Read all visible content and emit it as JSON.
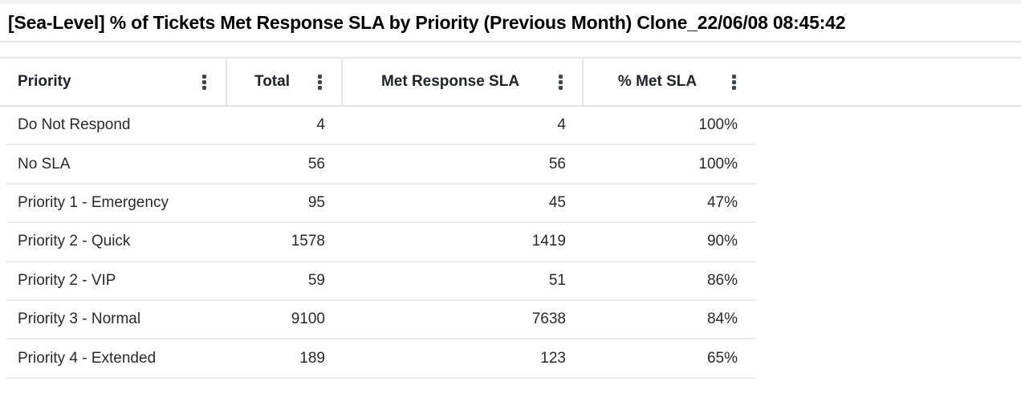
{
  "panel": {
    "title": "[Sea-Level] % of Tickets Met Response SLA by Priority (Previous Month) Clone_22/06/08 08:45:42"
  },
  "table": {
    "columns": [
      {
        "label": "Priority",
        "menu_icon": "kebab-vertical-icon",
        "align": "left"
      },
      {
        "label": "Total",
        "menu_icon": "kebab-vertical-icon",
        "align": "right"
      },
      {
        "label": "Met Response SLA",
        "menu_icon": "kebab-vertical-icon",
        "align": "right"
      },
      {
        "label": "% Met SLA",
        "menu_icon": "kebab-vertical-icon",
        "align": "right"
      }
    ],
    "rows": [
      {
        "priority": "Do Not Respond",
        "total": "4",
        "met": "4",
        "pct": "100%"
      },
      {
        "priority": "No SLA",
        "total": "56",
        "met": "56",
        "pct": "100%"
      },
      {
        "priority": "Priority 1 - Emergency",
        "total": "95",
        "met": "45",
        "pct": "47%"
      },
      {
        "priority": "Priority 2 - Quick",
        "total": "1578",
        "met": "1419",
        "pct": "90%"
      },
      {
        "priority": "Priority 2 - VIP",
        "total": "59",
        "met": "51",
        "pct": "86%"
      },
      {
        "priority": "Priority 3 - Normal",
        "total": "9100",
        "met": "7638",
        "pct": "84%"
      },
      {
        "priority": "Priority 4 - Extended",
        "total": "189",
        "met": "123",
        "pct": "65%"
      }
    ]
  },
  "colors": {
    "page_bg": "#ffffff",
    "top_strip": "#f2f2f4",
    "title_text": "#000000",
    "header_text": "#202329",
    "cell_text": "#26292f",
    "border_title": "#e6e6ea",
    "border_header_top": "#e7e8ec",
    "border_header_bottom": "#dee1e7",
    "border_vertical": "#e4e5e9",
    "border_row": "#eaebee",
    "kebab_dot": "#41464e"
  }
}
